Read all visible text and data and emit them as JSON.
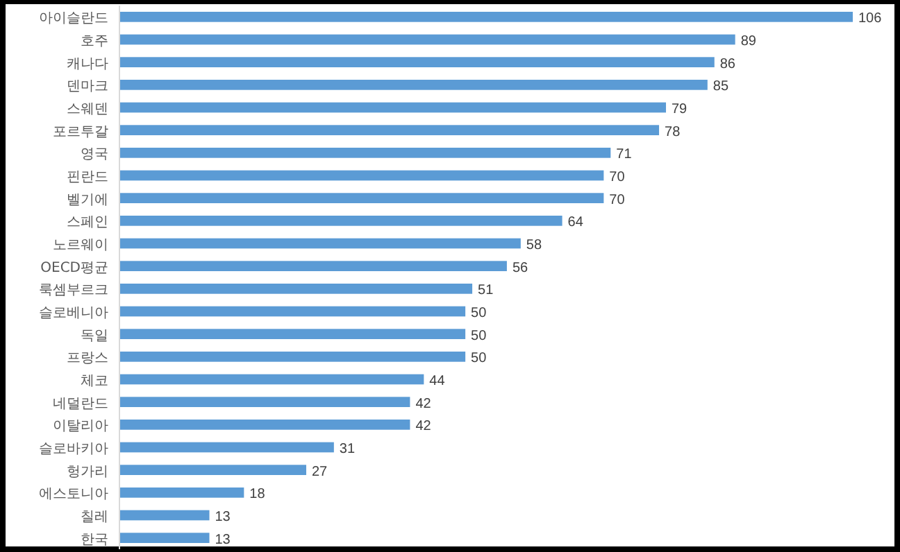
{
  "chart_data": {
    "type": "bar",
    "orientation": "horizontal",
    "data_labels": true,
    "color": "#5b9bd5",
    "categories": [
      "아이슬란드",
      "호주",
      "캐나다",
      "덴마크",
      "스웨덴",
      "포르투갈",
      "영국",
      "핀란드",
      "벨기에",
      "스페인",
      "노르웨이",
      "OECD평균",
      "룩셈부르크",
      "슬로베니아",
      "독일",
      "프랑스",
      "체코",
      "네덜란드",
      "이탈리아",
      "슬로바키아",
      "헝가리",
      "에스토니아",
      "칠레",
      "한국"
    ],
    "values": [
      106,
      89,
      86,
      85,
      79,
      78,
      71,
      70,
      70,
      64,
      58,
      56,
      51,
      50,
      50,
      50,
      44,
      42,
      42,
      31,
      27,
      18,
      13,
      13
    ]
  }
}
